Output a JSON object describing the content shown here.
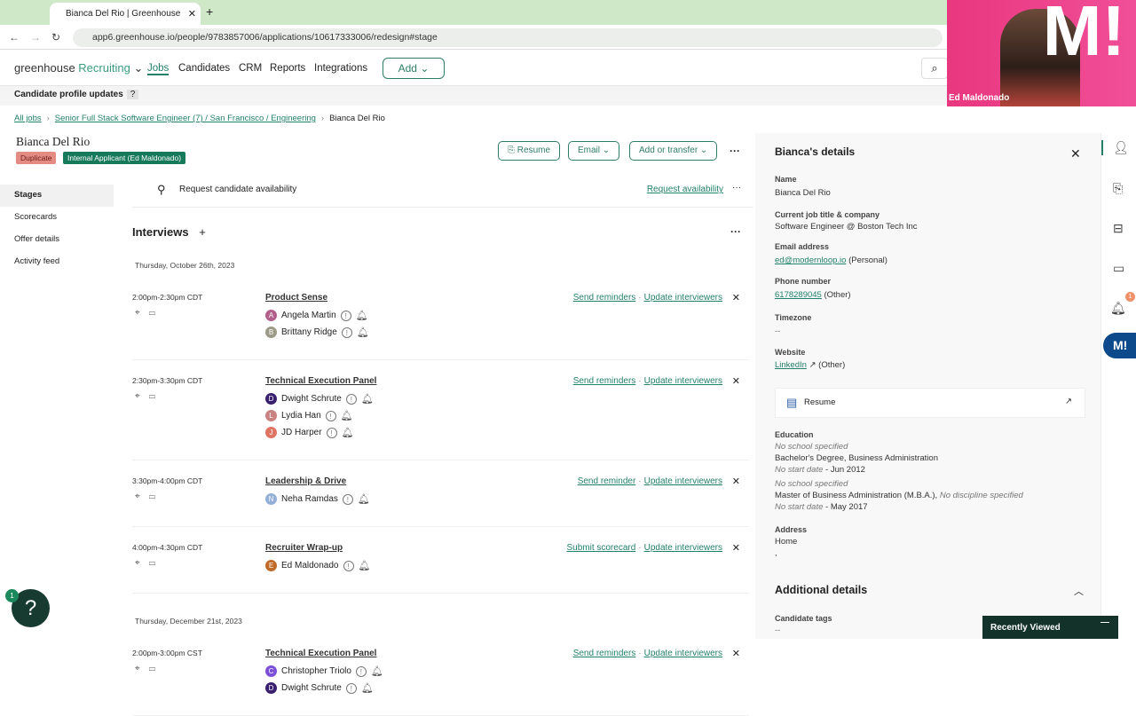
{
  "browser": {
    "tab_title": "Bianca Del Rio | Greenhouse",
    "url": "app6.greenhouse.io/people/9783857006/applications/10617333006/redesign#stage"
  },
  "nav": {
    "logo_main": "greenhouse",
    "logo_sub": "Recruiting",
    "items": [
      "Jobs",
      "Candidates",
      "CRM",
      "Reports",
      "Integrations"
    ],
    "active": "Jobs",
    "add_label": "Add"
  },
  "updates_bar": {
    "label": "Candidate profile updates",
    "help": "?"
  },
  "breadcrumb": {
    "all_jobs": "All jobs",
    "job": "Senior Full Stack Software Engineer (7) / San Francisco / Engineering",
    "current": "Bianca Del Rio"
  },
  "candidate": {
    "name": "Bianca Del Rio",
    "badges": [
      "Duplicate",
      "Internal Applicant (Ed Maldonado)"
    ]
  },
  "header_actions": {
    "resume": "Resume",
    "email": "Email",
    "add_transfer": "Add or transfer"
  },
  "left_nav": [
    "Stages",
    "Scorecards",
    "Offer details",
    "Activity feed"
  ],
  "request": {
    "label": "Request candidate availability",
    "link": "Request availability"
  },
  "interviews": {
    "heading": "Interviews",
    "groups": [
      {
        "date": "Thursday, October 26th, 2023",
        "items": [
          {
            "time": "2:00pm-2:30pm CDT",
            "title": "Product Sense",
            "actions": [
              "Send reminders",
              "Update interviewers"
            ],
            "people": [
              {
                "name": "Angela Martin",
                "initial": "A",
                "color": "#b0608a"
              },
              {
                "name": "Brittany Ridge",
                "initial": "B",
                "color": "#9a9a86"
              }
            ]
          },
          {
            "time": "2:30pm-3:30pm CDT",
            "title": "Technical Execution Panel",
            "actions": [
              "Send reminders",
              "Update interviewers"
            ],
            "people": [
              {
                "name": "Dwight Schrute",
                "initial": "D",
                "color": "#3a1f6e"
              },
              {
                "name": "Lydia Han",
                "initial": "L",
                "color": "#c98282"
              },
              {
                "name": "JD Harper",
                "initial": "J",
                "color": "#e07462"
              }
            ]
          },
          {
            "time": "3:30pm-4:00pm CDT",
            "title": "Leadership & Drive",
            "actions": [
              "Send reminder",
              "Update interviewers"
            ],
            "people": [
              {
                "name": "Neha Ramdas",
                "initial": "N",
                "color": "#93afd8"
              }
            ]
          },
          {
            "time": "4:00pm-4:30pm CDT",
            "title": "Recruiter Wrap-up",
            "actions": [
              "Submit scorecard",
              "Update interviewers"
            ],
            "people": [
              {
                "name": "Ed Maldonado",
                "initial": "E",
                "color": "#c06a2a"
              }
            ]
          }
        ]
      },
      {
        "date": "Thursday, December 21st, 2023",
        "items": [
          {
            "time": "2:00pm-3:00pm CST",
            "title": "Technical Execution Panel",
            "actions": [
              "Send reminders",
              "Update interviewers"
            ],
            "people": [
              {
                "name": "Christopher Triolo",
                "initial": "C",
                "color": "#7b4fd8"
              },
              {
                "name": "Dwight Schrute",
                "initial": "D",
                "color": "#3a1f6e"
              }
            ]
          }
        ]
      }
    ]
  },
  "details": {
    "title": "Bianca's details",
    "name_label": "Name",
    "name": "Bianca Del Rio",
    "job_label": "Current job title & company",
    "job": "Software Engineer @ Boston Tech Inc",
    "email_label": "Email address",
    "email": "ed@modernloop.io",
    "email_type": "(Personal)",
    "phone_label": "Phone number",
    "phone": "6178289045",
    "phone_type": "(Other)",
    "tz_label": "Timezone",
    "tz": "--",
    "web_label": "Website",
    "web": "LinkedIn",
    "web_type": "(Other)",
    "resume": "Resume",
    "edu_label": "Education",
    "edu": [
      {
        "school": "No school specified",
        "degree": "Bachelor's Degree, Business Administration",
        "discipline": "",
        "dates_start": "No start date",
        "dates_end": " - Jun 2012"
      },
      {
        "school": "No school specified",
        "degree": "Master of Business Administration (M.B.A.),",
        "discipline": " No discipline specified",
        "dates_start": "No start date",
        "dates_end": " - May 2017"
      }
    ],
    "addr_label": "Address",
    "addr": "Home",
    "addr2": ",",
    "additional": "Additional details",
    "tags_label": "Candidate tags",
    "tags": "--"
  },
  "rail": {
    "notif_count": "1",
    "m_label": "M!"
  },
  "recently_viewed": "Recently Viewed",
  "help": {
    "count": "1",
    "icon": "?"
  },
  "video": {
    "name": "Ed Maldonado",
    "logo": "M!"
  },
  "colors": {
    "accent": "#23806b",
    "tabbar": "#cfe8c8",
    "dark": "#13332a"
  }
}
